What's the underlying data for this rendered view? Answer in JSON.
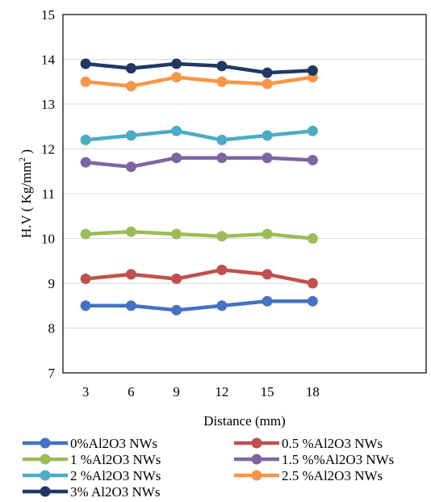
{
  "chart_data": {
    "type": "line",
    "xlabel": "Distance (mm)",
    "ylabel": "H.V ( Kg/mm",
    "ylabel_sup": "2",
    "ylabel_end": " )",
    "x": [
      3,
      6,
      9,
      12,
      15,
      18
    ],
    "x_tick_labels": [
      "3",
      "6",
      "9",
      "12",
      "15",
      "18"
    ],
    "x_slots": 8,
    "ylim": [
      7,
      15
    ],
    "y_ticks": [
      7,
      8,
      9,
      10,
      11,
      12,
      13,
      14,
      15
    ],
    "y_tick_labels": [
      "7",
      "8",
      "9",
      "10",
      "11",
      "12",
      "13",
      "14",
      "15"
    ],
    "grid": true,
    "legend_position": "bottom",
    "series": [
      {
        "name": "0%Al2O3 NWs",
        "color": "#4472C4",
        "values": [
          8.5,
          8.5,
          8.4,
          8.5,
          8.6,
          8.6
        ]
      },
      {
        "name": "0.5 %Al2O3 NWs",
        "color": "#C0504D",
        "values": [
          9.1,
          9.2,
          9.1,
          9.3,
          9.2,
          9.0
        ]
      },
      {
        "name": "1 %Al2O3 NWs",
        "color": "#9BBB59",
        "values": [
          10.1,
          10.15,
          10.1,
          10.05,
          10.1,
          10.0
        ]
      },
      {
        "name": "1.5 %%Al2O3 NWs",
        "color": "#8064A2",
        "values": [
          11.7,
          11.6,
          11.8,
          11.8,
          11.8,
          11.75
        ]
      },
      {
        "name": "2 %Al2O3 NWs",
        "color": "#4BACC6",
        "values": [
          12.2,
          12.3,
          12.4,
          12.2,
          12.3,
          12.4
        ]
      },
      {
        "name": "2.5 %Al2O3 NWs",
        "color": "#F79646",
        "values": [
          13.5,
          13.4,
          13.6,
          13.5,
          13.45,
          13.6
        ]
      },
      {
        "name": "3% Al2O3 NWs",
        "color": "#1F3864",
        "values": [
          13.9,
          13.8,
          13.9,
          13.85,
          13.7,
          13.75
        ]
      }
    ]
  }
}
